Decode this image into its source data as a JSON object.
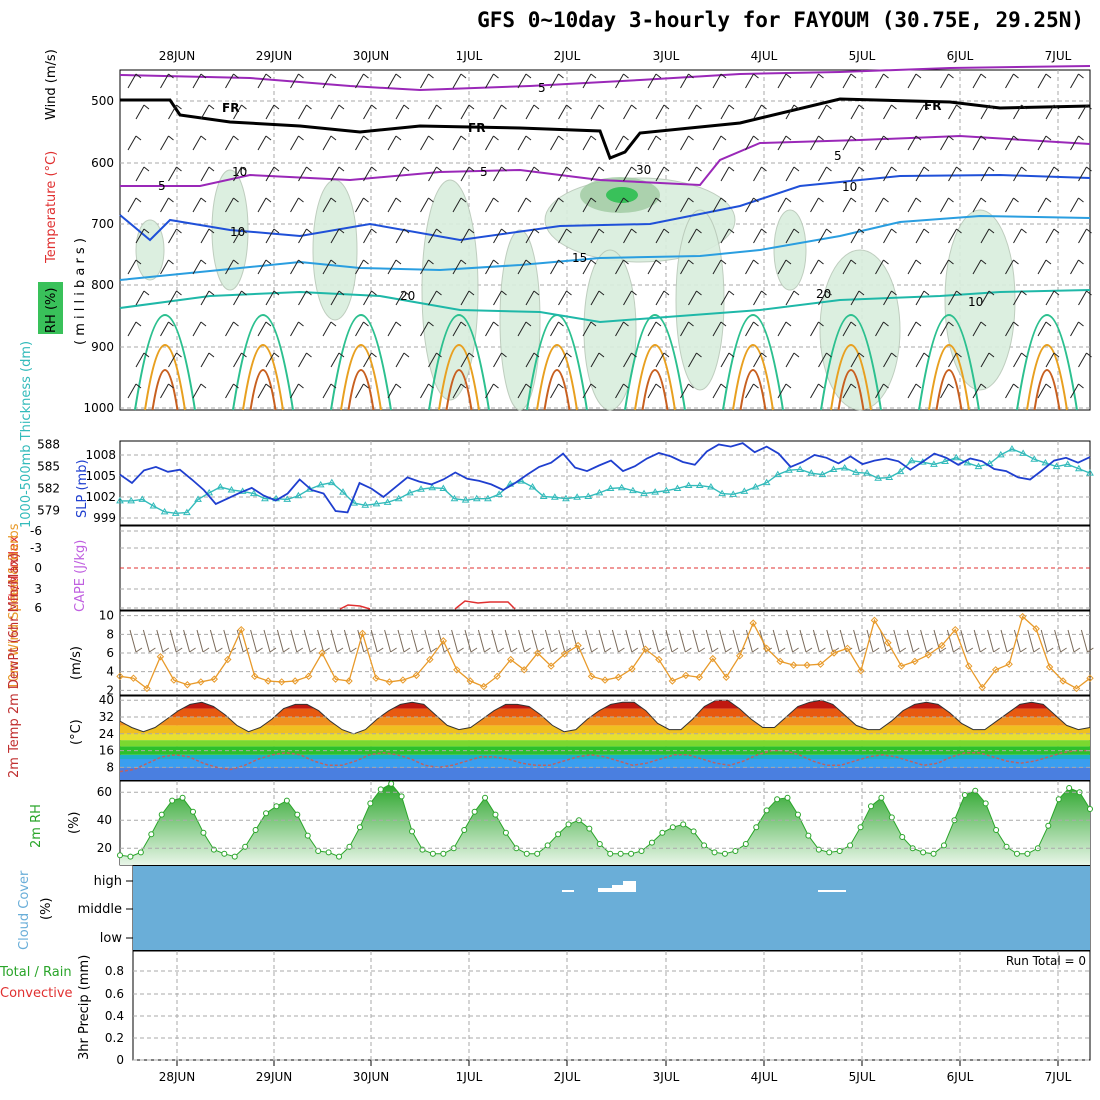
{
  "title": "GFS 0~10day 3-hourly for FAYOUM (30.75E, 29.25N)",
  "dates": [
    "28JUN",
    "29JUN",
    "30JUN",
    "1JUL",
    "2JUL",
    "3JUL",
    "4JUL",
    "5JUL",
    "6JUL",
    "7JUL"
  ],
  "colors": {
    "slp": "#1f3fcf",
    "thickness": "#33bbbb",
    "wind": "#e89a2a",
    "rh2m": "#2aa52a",
    "cloud": "#6aaed8",
    "grid": "#aaaaaa",
    "lifted": "#e03030",
    "cape": "#c060e0"
  },
  "panels": {
    "upper": {
      "ylabels": [
        "Wind (m/s)",
        "Temperature (°C)",
        "RH (%)",
        "( m i l l i b a r s )"
      ],
      "yticks": [
        "500",
        "600",
        "700",
        "800",
        "900",
        "1000"
      ],
      "contour_labels": {
        "fr": "FR",
        "t5": "5",
        "t10": "10",
        "t15": "15",
        "t20": "20",
        "rh10": "10",
        "rh30": "30"
      }
    },
    "thick": {
      "ylabel_left": "1000-500mb Thickness (dm)",
      "ylabel_right": "SLP (mb)",
      "yticks_left": [
        "588",
        "585",
        "582",
        "579"
      ],
      "yticks_right": [
        "1008",
        "1005",
        "1002",
        "999"
      ]
    },
    "cape": {
      "ylabel_left": "Lifted Index",
      "ylabel_right": "CAPE (J/kg)",
      "yticks": [
        "-6",
        "-3",
        "0",
        "3",
        "6"
      ]
    },
    "wind": {
      "ylabel": "10m Wind Speed & Barbs",
      "unit": "(m/s)",
      "yticks": [
        "10",
        "8",
        "6",
        "4",
        "2"
      ]
    },
    "temp": {
      "ylabel": "2m Temp 2m DewPt (6hr Min/Max)",
      "unit": "(°C)",
      "yticks": [
        "40",
        "32",
        "24",
        "16",
        "8"
      ]
    },
    "rh": {
      "ylabel": "2m RH",
      "unit": "(%)",
      "yticks": [
        "60",
        "40",
        "20"
      ]
    },
    "cloud": {
      "ylabel": "Cloud Cover",
      "unit": "(%)",
      "levels": [
        "high",
        "middle",
        "low"
      ]
    },
    "precip": {
      "ylabel_a": "Total / Rain",
      "ylabel_b": "Convective",
      "ylabel_c": "3hr Precip (mm)",
      "run_total": "Run Total = 0",
      "yticks": [
        "0.8",
        "0.6",
        "0.4",
        "0.2",
        "0"
      ]
    }
  },
  "chart_data": [
    {
      "type": "line",
      "name": "slp",
      "ylabel": "SLP (mb)",
      "ylim": [
        998,
        1010
      ],
      "values": [
        1005.2,
        1004,
        1005.8,
        1006.3,
        1005.6,
        1005.9,
        1004.5,
        1003,
        1001,
        1001.8,
        1002.6,
        1003.3,
        1002.2,
        1001.5,
        1002.5,
        1004.5,
        1003,
        1002.5,
        1000,
        999.8,
        1004,
        1003.2,
        1002,
        1003.4,
        1004.8,
        1004.2,
        1003.8,
        1004.5,
        1005.5,
        1004.6,
        1004.3,
        1003.8,
        1003,
        1004,
        1005.2,
        1006.3,
        1006.9,
        1008.2,
        1006.2,
        1005.7,
        1006.5,
        1007.2,
        1005.7,
        1006.4,
        1007.5,
        1008.3,
        1007.8,
        1007,
        1006.6,
        1008.5,
        1009.5,
        1009.2,
        1009.7,
        1008.4,
        1009.2,
        1008.2,
        1006.3,
        1007,
        1008,
        1007.6,
        1006.8,
        1007.8,
        1006.7,
        1007.2,
        1007.5,
        1007.1,
        1005.9,
        1007,
        1008.2,
        1007.6,
        1006.6,
        1007.5,
        1007.1,
        1006,
        1005.7,
        1004.8,
        1004.5,
        1005.8,
        1007.2,
        1007.6,
        1006.9,
        1007.7
      ]
    },
    {
      "type": "line",
      "name": "thickness",
      "ylabel": "1000-500mb Thickness (dm)",
      "ylim": [
        577,
        588.5
      ],
      "values": [
        580.3,
        580.3,
        580.5,
        579.6,
        578.8,
        578.6,
        578.7,
        580.5,
        581.4,
        582.2,
        581.8,
        581.6,
        581.3,
        580.6,
        580.6,
        580.5,
        581,
        581.9,
        582.5,
        582.8,
        581.5,
        580,
        579.7,
        579.9,
        580.1,
        580.6,
        581.4,
        581.9,
        582.1,
        582,
        580.6,
        580.4,
        580.6,
        580.6,
        581.2,
        582.6,
        583,
        582.2,
        580.9,
        580.8,
        580.6,
        580.8,
        580.9,
        581.4,
        582,
        582.1,
        581.7,
        581.3,
        581.5,
        581.7,
        582,
        582.4,
        582.4,
        582.2,
        581.3,
        581.2,
        581.6,
        582.2,
        582.8,
        583.9,
        584.5,
        584.6,
        584.1,
        583.9,
        584.6,
        584.8,
        584.2,
        584.1,
        583.4,
        583.5,
        584.3,
        585.8,
        585.6,
        585.3,
        585.7,
        586.2,
        585.5,
        585,
        585.4,
        586.6,
        587.4,
        586.8,
        586,
        585.5,
        585,
        585.3,
        584.7,
        584.1
      ]
    },
    {
      "type": "line",
      "name": "wind_speed",
      "ylabel": "10m Wind Speed",
      "ylim": [
        1.5,
        10.5
      ],
      "values": [
        3.5,
        3.3,
        2.2,
        5.6,
        3.1,
        2.6,
        2.9,
        3.2,
        5.3,
        8.5,
        3.5,
        3,
        2.9,
        3,
        3.5,
        6,
        3.2,
        3,
        8.1,
        3.3,
        2.9,
        3.1,
        3.6,
        5.3,
        7.3,
        4.2,
        3,
        2.4,
        3.5,
        5.3,
        4.2,
        6,
        4.6,
        5.9,
        6.8,
        3.5,
        3.1,
        3.4,
        4.3,
        6.4,
        5.3,
        3,
        3.6,
        3.4,
        5.4,
        3.4,
        5.7,
        9.2,
        6.5,
        5.1,
        4.7,
        4.7,
        4.8,
        6,
        6.5,
        4.1,
        9.5,
        7.1,
        4.6,
        5.1,
        5.8,
        6.8,
        8.5,
        4.6,
        2.3,
        4.2,
        4.8,
        9.9,
        8.6,
        4.5,
        3,
        2.2,
        3.3
      ]
    },
    {
      "type": "area",
      "name": "temp_2m",
      "ylabel": "2m Temp",
      "ylim": [
        2,
        42
      ],
      "values": [
        30,
        27,
        25,
        27,
        31,
        35,
        38,
        39,
        37,
        33,
        28,
        25,
        27,
        31,
        36,
        38,
        38,
        35,
        30,
        26,
        24,
        26,
        31,
        35,
        38,
        39,
        38,
        33,
        28,
        26,
        27,
        31,
        35,
        38,
        38,
        37,
        33,
        28,
        25,
        26,
        31,
        35,
        38,
        39,
        39,
        35,
        29,
        26,
        26,
        31,
        37,
        40,
        40,
        36,
        31,
        27,
        27,
        32,
        37,
        39,
        40,
        38,
        33,
        28,
        26,
        26,
        30,
        35,
        38,
        39,
        38,
        34,
        29,
        26,
        26,
        30,
        34,
        38,
        39,
        38,
        33,
        28,
        26,
        27
      ]
    },
    {
      "type": "line",
      "name": "dewpoint_2m",
      "ylabel": "2m DewPt",
      "ylim": [
        2,
        42
      ],
      "values": [
        6,
        7,
        10,
        13,
        14,
        13,
        10,
        8,
        7,
        9,
        12,
        14,
        15,
        14,
        11,
        9,
        9,
        11,
        14,
        15,
        14,
        12,
        9,
        8,
        9,
        11,
        13,
        13,
        12,
        10,
        9,
        9,
        11,
        13,
        14,
        13,
        11,
        9,
        10,
        12,
        14,
        14,
        12,
        10,
        9,
        11,
        14,
        16,
        16,
        14,
        11,
        9,
        9,
        11,
        13,
        14,
        13,
        11,
        9,
        10,
        13,
        15,
        15,
        13,
        11,
        10,
        11,
        13,
        15,
        16,
        16
      ]
    },
    {
      "type": "area",
      "name": "rh_2m",
      "ylabel": "2m RH",
      "ylim": [
        8,
        68
      ],
      "values": [
        15,
        14,
        17,
        30,
        44,
        54,
        56,
        46,
        31,
        19,
        16,
        14,
        21,
        33,
        45,
        50,
        54,
        44,
        29,
        18,
        17,
        14,
        21,
        35,
        52,
        62,
        66,
        57,
        32,
        19,
        16,
        16,
        20,
        33,
        46,
        56,
        44,
        31,
        20,
        16,
        16,
        22,
        30,
        37,
        40,
        34,
        23,
        16,
        16,
        16,
        18,
        24,
        31,
        35,
        37,
        32,
        22,
        17,
        16,
        18,
        23,
        35,
        47,
        55,
        56,
        44,
        29,
        19,
        17,
        18,
        22,
        35,
        50,
        56,
        42,
        28,
        20,
        17,
        16,
        22,
        40,
        58,
        61,
        52,
        33,
        21,
        16,
        16,
        20,
        36,
        55,
        63,
        60,
        48
      ]
    },
    {
      "type": "bar",
      "name": "precip_3hr",
      "ylabel": "3hr Precip (mm)",
      "ylim": [
        0,
        1
      ],
      "values": []
    }
  ]
}
